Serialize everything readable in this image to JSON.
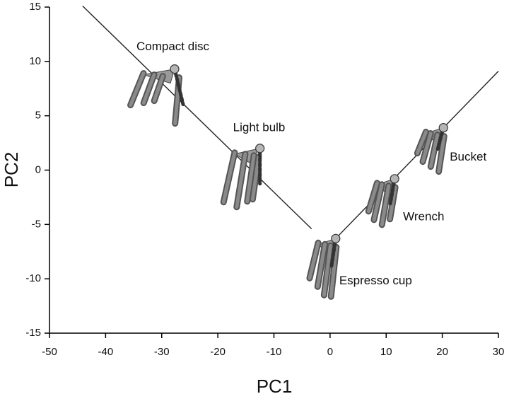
{
  "chart_data": {
    "type": "scatter",
    "xlabel": "PC1",
    "ylabel": "PC2",
    "xlim": [
      -50,
      30
    ],
    "ylim": [
      -15,
      15
    ],
    "xticks": [
      -50,
      -40,
      -30,
      -20,
      -10,
      0,
      10,
      20,
      30
    ],
    "yticks": [
      -15,
      -10,
      -5,
      0,
      5,
      10,
      15
    ],
    "labels": [
      "Compact disc",
      "Light bulb",
      "Espresso cup",
      "Wrench",
      "Bucket"
    ],
    "x": [
      -27.7,
      -12.5,
      1,
      11.5,
      20.2
    ],
    "values": [
      9.3,
      2,
      -6.3,
      -0.8,
      3.9
    ],
    "color": "#8a8a8a",
    "lines": [
      {
        "x": [
          -44.1,
          -3.3
        ],
        "y": [
          15.1,
          -5.4
        ]
      },
      {
        "x": [
          1,
          30
        ],
        "y": [
          -6.3,
          9.1
        ]
      }
    ]
  }
}
